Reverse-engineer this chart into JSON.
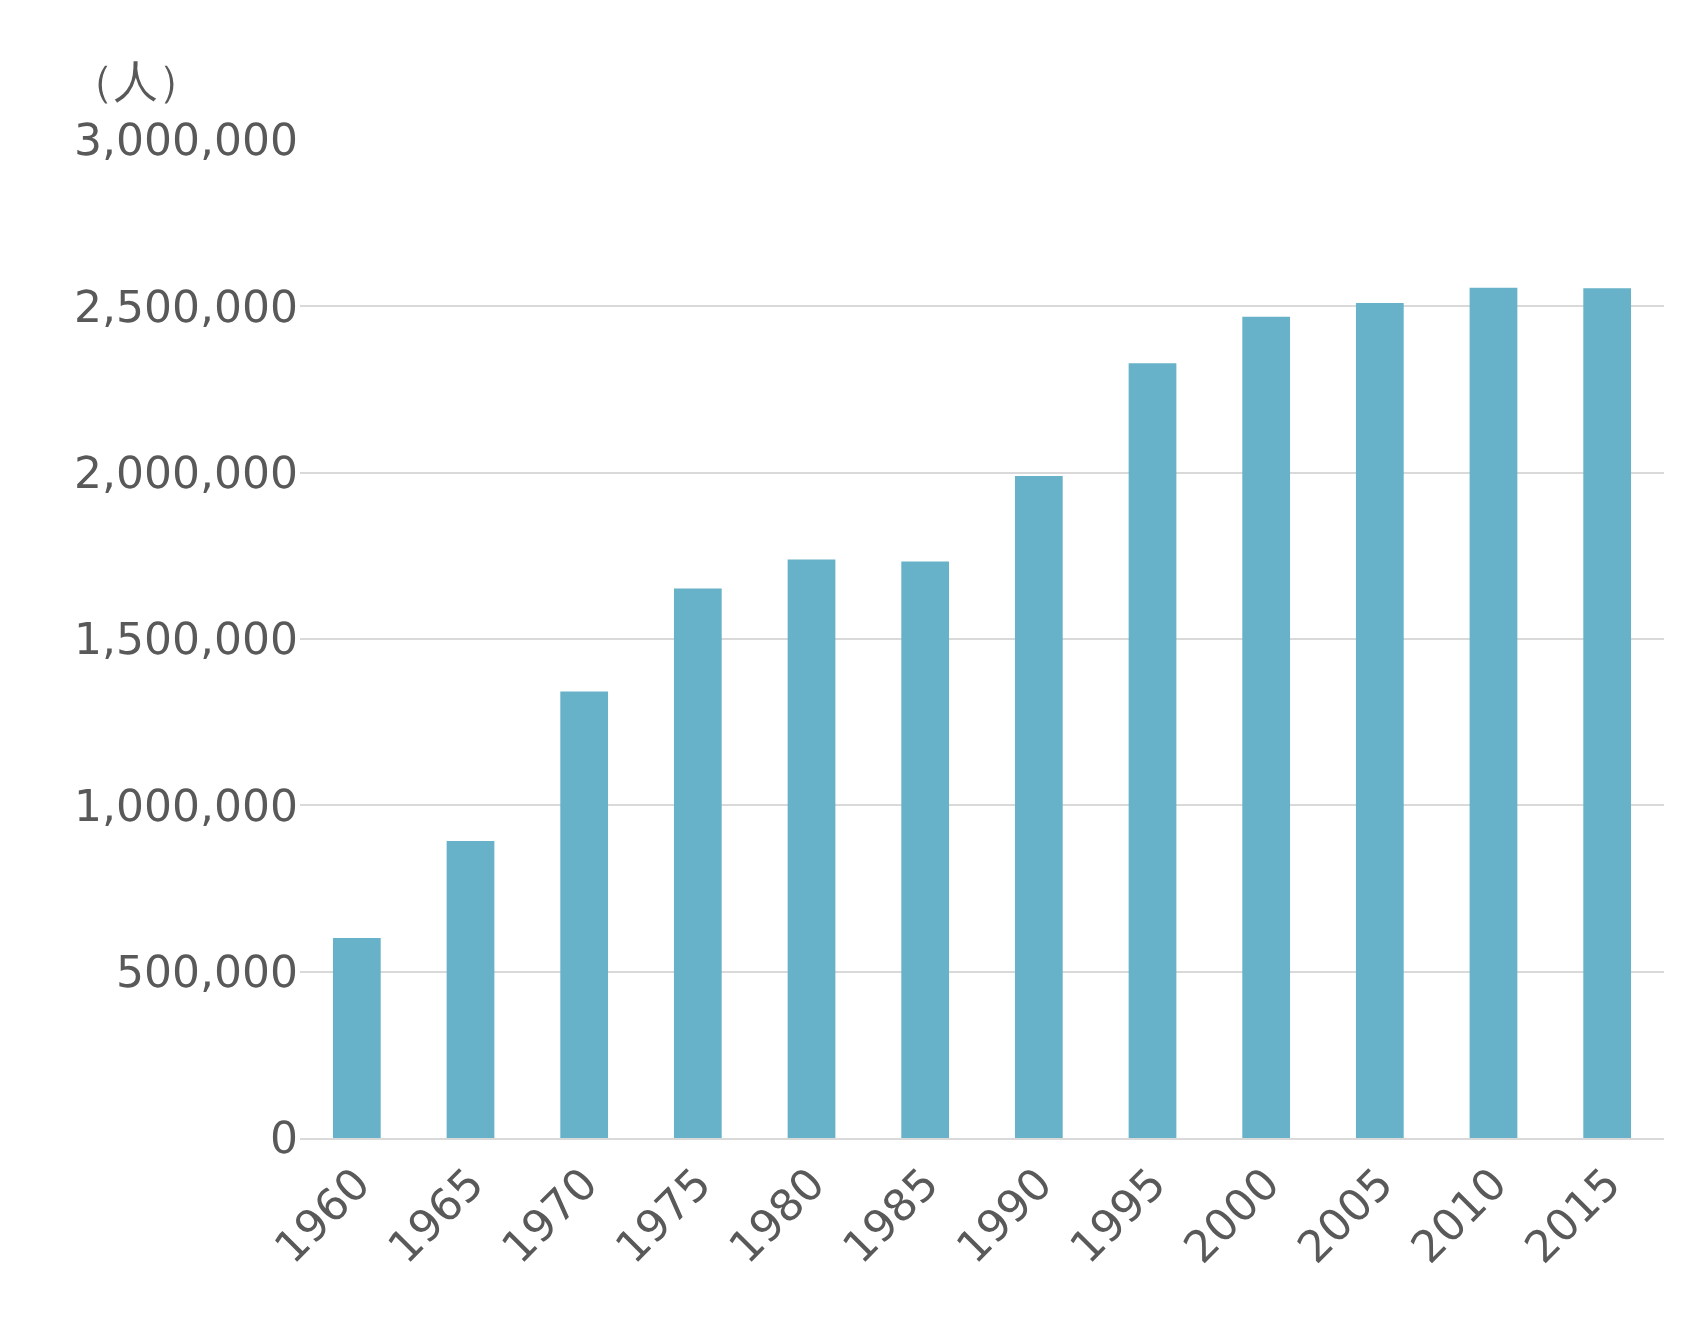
{
  "chart_data": {
    "type": "bar",
    "ylabel": "（人）",
    "categories": [
      "1960",
      "1965",
      "1970",
      "1975",
      "1980",
      "1985",
      "1990",
      "1995",
      "2000",
      "2005",
      "2010",
      "2015"
    ],
    "values": [
      601000,
      893000,
      1342000,
      1652000,
      1739000,
      1733000,
      1990000,
      2329000,
      2469000,
      2510000,
      2556000,
      2554000
    ],
    "color": "#67b2c8",
    "ylim": [
      0,
      3000000
    ],
    "yticks": [
      {
        "value": 0,
        "label": "0"
      },
      {
        "value": 500000,
        "label": "500,000"
      },
      {
        "value": 1000000,
        "label": "1,000,000"
      },
      {
        "value": 1500000,
        "label": "1,500,000"
      },
      {
        "value": 2000000,
        "label": "2,000,000"
      },
      {
        "value": 2500000,
        "label": "2,500,000"
      },
      {
        "value": 3000000,
        "label": "3,000,000"
      }
    ],
    "grid": "y"
  }
}
